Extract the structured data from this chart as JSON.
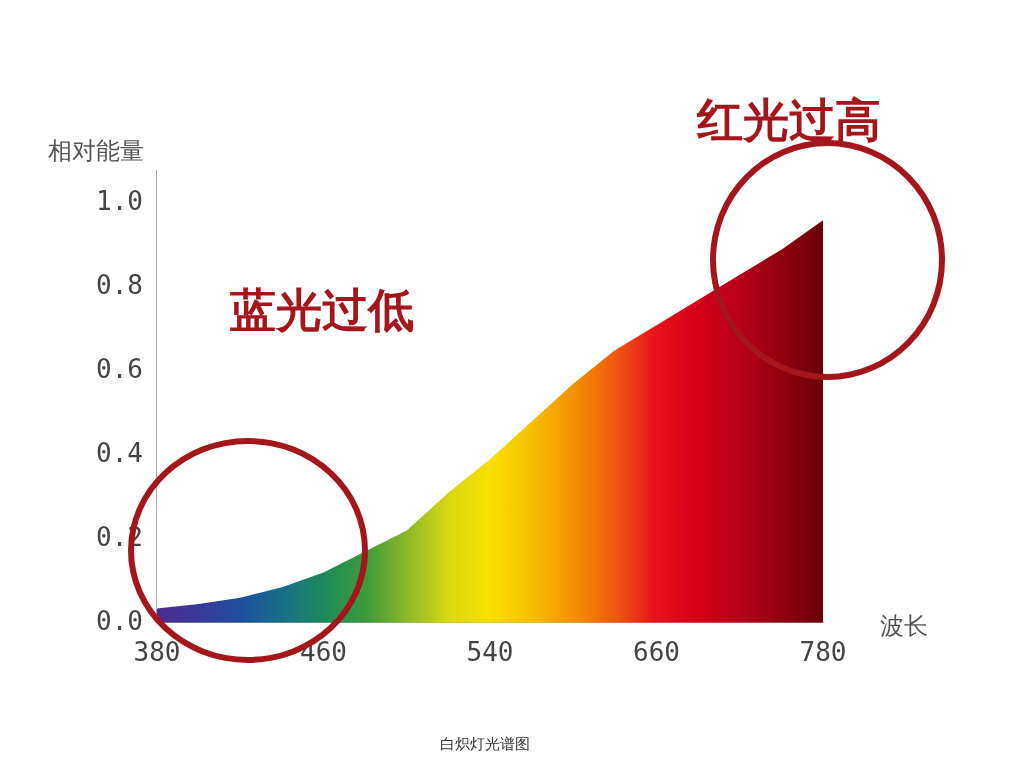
{
  "chart_data": {
    "type": "area",
    "ylabel": "相对能量",
    "xlabel": "波长",
    "categories": [
      "380",
      null,
      null,
      null,
      "460",
      null,
      null,
      null,
      "540",
      null,
      null,
      null,
      "660",
      null,
      null,
      null,
      "780"
    ],
    "values": [
      0.034,
      0.045,
      0.06,
      0.085,
      0.12,
      0.17,
      0.22,
      0.31,
      0.39,
      0.48,
      0.57,
      0.65,
      0.71,
      0.77,
      0.83,
      0.89,
      0.96
    ],
    "colors": [
      "#4b2d8c",
      "#3a3a96",
      "#1d4e9e",
      "#1a6e8a",
      "#1f8a5a",
      "#3a9a3a",
      "#8cb828",
      "#d8d810",
      "#f8e000",
      "#f5c000",
      "#f59000",
      "#ef5a10",
      "#e8101a",
      "#d40018",
      "#b8001a",
      "#900010",
      "#6a0008"
    ],
    "ylim": [
      0,
      1.08
    ],
    "yticks": [
      {
        "value": 0,
        "label": "0.0"
      },
      {
        "value": 0.2,
        "label": "0.2"
      },
      {
        "value": 0.4,
        "label": "0.4"
      },
      {
        "value": 0.6,
        "label": "0.6"
      },
      {
        "value": 0.8,
        "label": "0.8"
      },
      {
        "value": 1,
        "label": "1.0"
      }
    ],
    "grid": false,
    "legend": false,
    "annotations": [
      "蓝光过低",
      "红光过高",
      "白炽灯光谱图"
    ]
  }
}
